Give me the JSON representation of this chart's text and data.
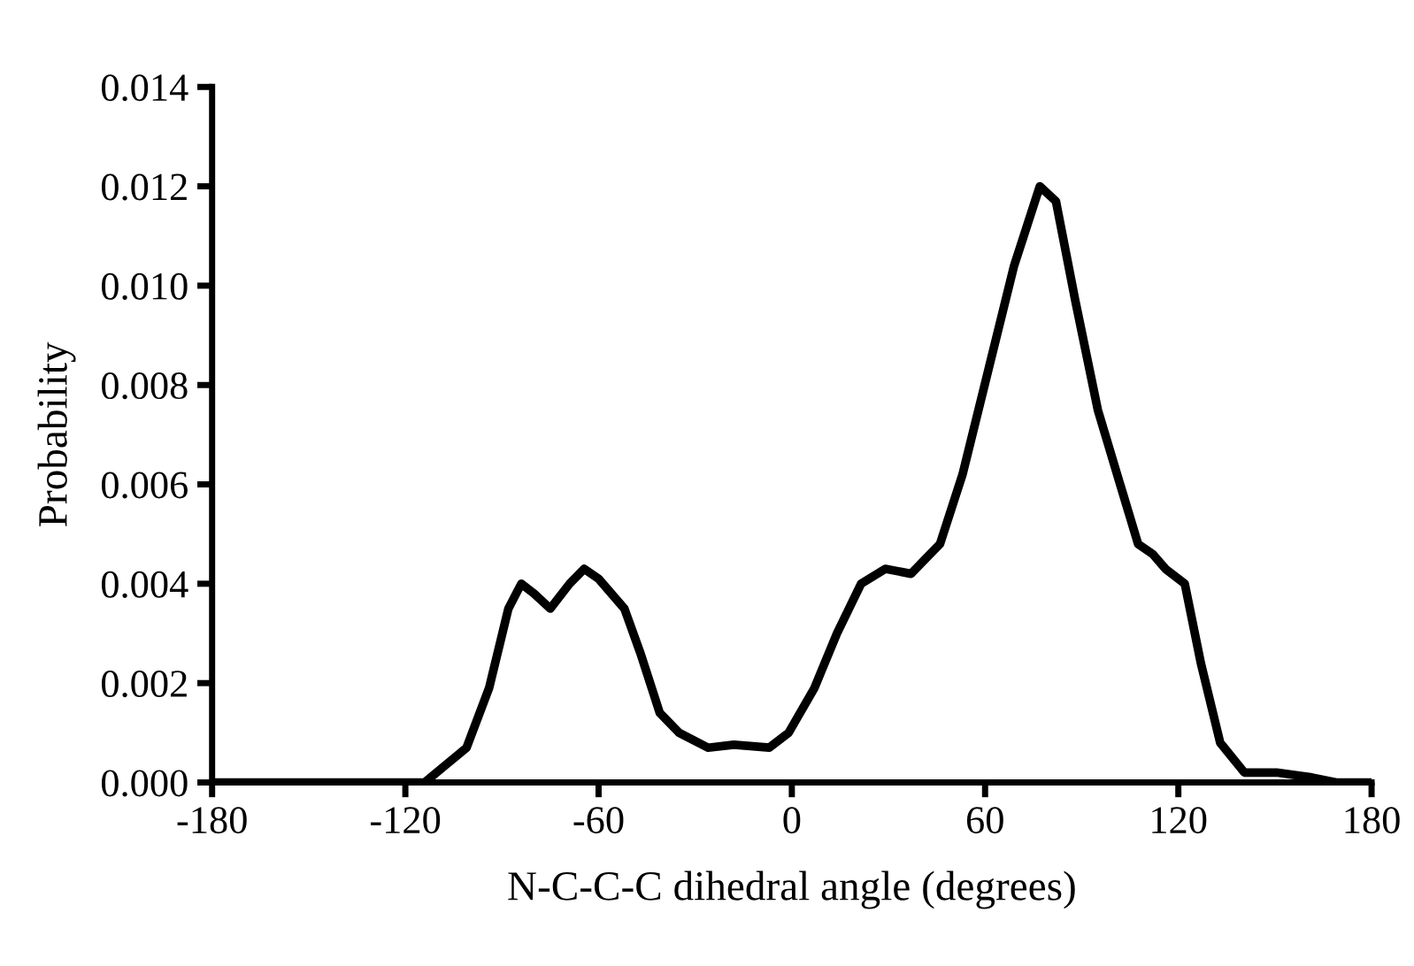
{
  "chart_data": {
    "type": "line",
    "xlabel": "N-C-C-C dihedral angle (degrees)",
    "ylabel": "Probability",
    "xlim": [
      -180,
      180
    ],
    "xticks": [
      -180,
      -120,
      -60,
      0,
      60,
      120,
      180
    ],
    "ylim": [
      0,
      0.014
    ],
    "yticks": [
      {
        "value": 0,
        "label": "0.000"
      },
      {
        "value": 0.002,
        "label": "0.002"
      },
      {
        "value": 0.004,
        "label": "0.004"
      },
      {
        "value": 0.006,
        "label": "0.006"
      },
      {
        "value": 0.008,
        "label": "0.008"
      },
      {
        "value": 0.01,
        "label": "0.010"
      },
      {
        "value": 0.012,
        "label": "0.012"
      },
      {
        "value": 0.014,
        "label": "0.014"
      }
    ],
    "grid": false,
    "legend": false,
    "series": [
      {
        "color": "#000000",
        "x": [
          -180,
          -150,
          -114,
          -101,
          -94,
          -88,
          -84,
          -80,
          -75,
          -69,
          -64.5,
          -60,
          -52,
          -47,
          -41,
          -35,
          -26,
          -18,
          -7,
          -1,
          7,
          14,
          21.5,
          29,
          37,
          46,
          53,
          61,
          69,
          77,
          82,
          88,
          95,
          101,
          107.5,
          112,
          116,
          122,
          127,
          133,
          140.5,
          150.5,
          161.5,
          169,
          180
        ],
        "values": [
          0,
          0,
          0,
          0.0007,
          0.0019,
          0.0035,
          0.004,
          0.0038,
          0.0035,
          0.004,
          0.0043,
          0.0041,
          0.0035,
          0.0026,
          0.0014,
          0.001,
          0.0007,
          0.00076,
          0.0007,
          0.001,
          0.0019,
          0.003,
          0.004,
          0.0043,
          0.0042,
          0.0048,
          0.0062,
          0.0083,
          0.0104,
          0.012,
          0.0117,
          0.0097,
          0.0075,
          0.0062,
          0.0048,
          0.0046,
          0.0043,
          0.004,
          0.0024,
          0.0008,
          0.0002,
          0.0002,
          0.0001,
          0,
          0
        ]
      }
    ]
  }
}
